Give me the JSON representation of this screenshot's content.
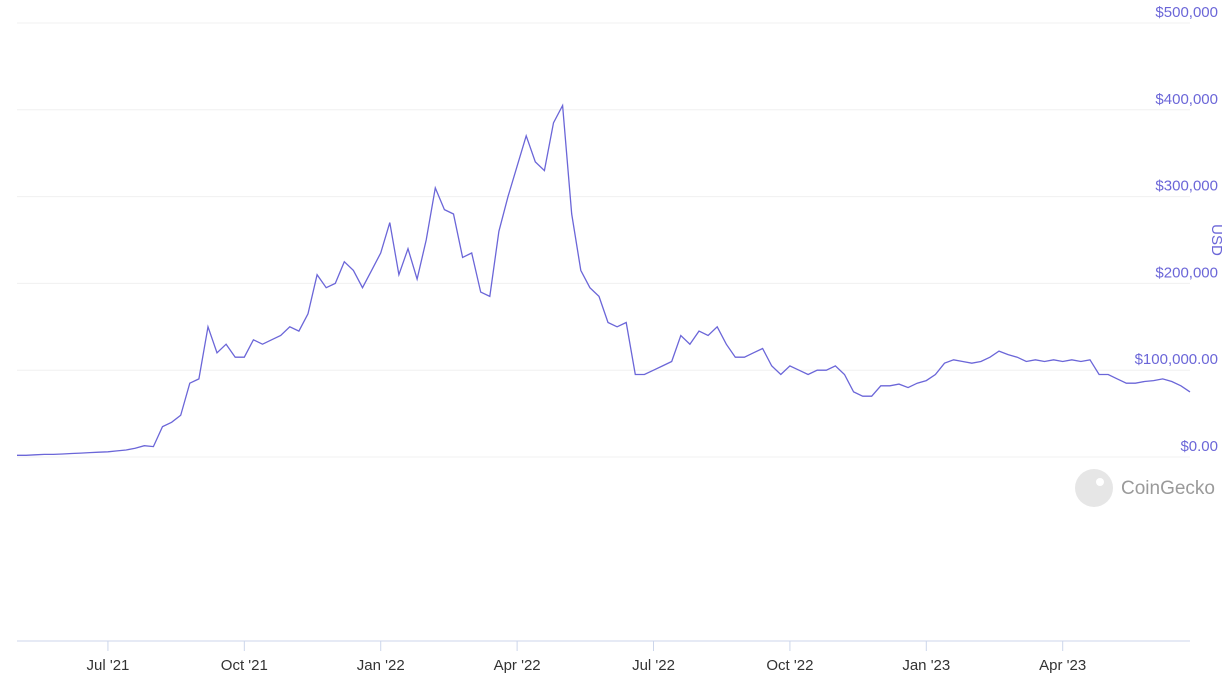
{
  "chart_data": {
    "type": "line",
    "color": "#6b66d8",
    "y_label": "USD",
    "watermark": "CoinGecko",
    "categories": [
      null,
      null,
      null,
      null,
      null,
      null,
      null,
      null,
      null,
      null,
      "Jul '21",
      null,
      null,
      null,
      null,
      null,
      null,
      null,
      null,
      null,
      null,
      null,
      null,
      null,
      null,
      "Oct '21",
      null,
      null,
      null,
      null,
      null,
      null,
      null,
      null,
      null,
      null,
      null,
      null,
      null,
      null,
      "Jan '22",
      null,
      null,
      null,
      null,
      null,
      null,
      null,
      null,
      null,
      null,
      null,
      null,
      null,
      null,
      "Apr '22",
      null,
      null,
      null,
      null,
      null,
      null,
      null,
      null,
      null,
      null,
      null,
      null,
      null,
      null,
      "Jul '22",
      null,
      null,
      null,
      null,
      null,
      null,
      null,
      null,
      null,
      null,
      null,
      null,
      null,
      null,
      "Oct '22",
      null,
      null,
      null,
      null,
      null,
      null,
      null,
      null,
      null,
      null,
      null,
      null,
      null,
      null,
      "Jan '23",
      null,
      null,
      null,
      null,
      null,
      null,
      null,
      null,
      null,
      null,
      null,
      null,
      null,
      null,
      "Apr '23",
      null,
      null,
      null,
      null,
      null,
      null,
      null,
      null,
      null,
      null,
      null,
      null,
      null,
      null
    ],
    "values": [
      2000,
      2000,
      2500,
      3000,
      3000,
      3500,
      4000,
      4500,
      5000,
      5500,
      6000,
      7000,
      8000,
      10000,
      13000,
      12000,
      35000,
      40000,
      48000,
      85000,
      90000,
      150000,
      120000,
      130000,
      115000,
      115000,
      135000,
      130000,
      135000,
      140000,
      150000,
      145000,
      165000,
      210000,
      195000,
      200000,
      225000,
      215000,
      195000,
      215000,
      235000,
      270000,
      210000,
      240000,
      205000,
      250000,
      310000,
      285000,
      280000,
      230000,
      235000,
      190000,
      185000,
      260000,
      300000,
      335000,
      370000,
      340000,
      330000,
      385000,
      405000,
      280000,
      215000,
      195000,
      185000,
      155000,
      150000,
      155000,
      95000,
      95000,
      100000,
      105000,
      110000,
      140000,
      130000,
      145000,
      140000,
      150000,
      130000,
      115000,
      115000,
      120000,
      125000,
      105000,
      95000,
      105000,
      100000,
      95000,
      100000,
      100000,
      105000,
      95000,
      75000,
      70000,
      70000,
      82000,
      82000,
      84000,
      80000,
      85000,
      88000,
      95000,
      108000,
      112000,
      110000,
      108000,
      110000,
      115000,
      122000,
      118000,
      115000,
      110000,
      112000,
      110000,
      112000,
      110000,
      112000,
      110000,
      112000,
      95000,
      95000,
      90000,
      85000,
      85000,
      87000,
      88000,
      90000,
      87000,
      82000,
      75000
    ],
    "ylim": [
      -212000,
      500000
    ],
    "yticks": [
      {
        "value": 0,
        "label": "$0.00"
      },
      {
        "value": 100000,
        "label": "$100,000.00"
      },
      {
        "value": 200000,
        "label": "$200,000"
      },
      {
        "value": 300000,
        "label": "$300,000"
      },
      {
        "value": 400000,
        "label": "$400,000"
      },
      {
        "value": 500000,
        "label": "$500,000"
      }
    ],
    "grid": true
  }
}
